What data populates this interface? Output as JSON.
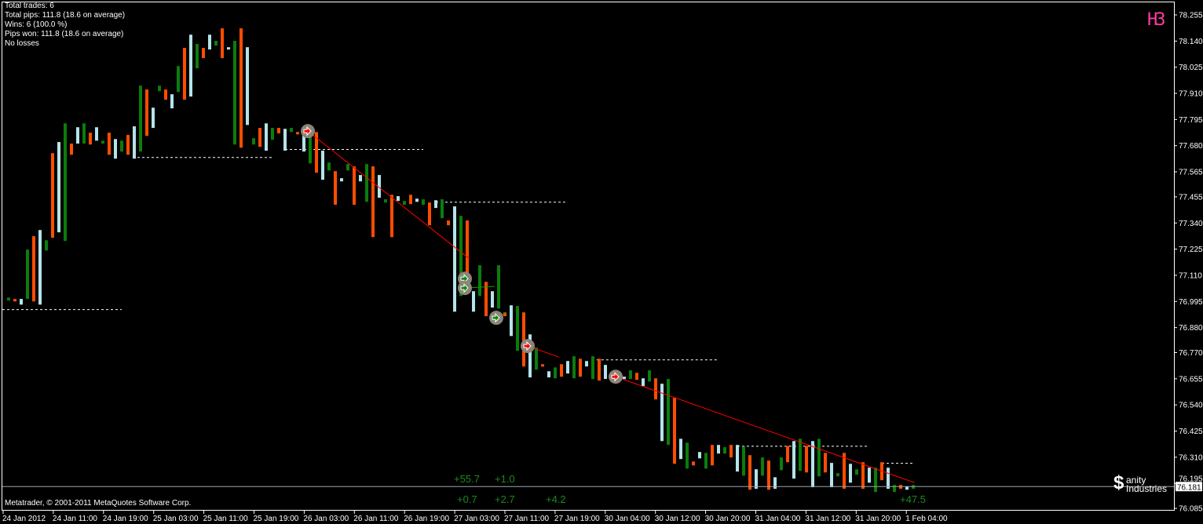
{
  "stats": {
    "lines": [
      "Total trades: 6",
      "Total pips: 111.8 (18.6 on average)",
      "Wins: 6 (100.0 %)",
      "Pips won: 111.8 (18.6 on average)",
      "No losses"
    ]
  },
  "timeframe_label": "H3",
  "copyright": "Metatrader, © 2001-2011 MetaQuotes Software Corp.",
  "logo": {
    "symbol": "$",
    "line1": "anity",
    "line2": "Industries"
  },
  "pips_labels": [
    "+55.7",
    "+1.0",
    "+0.7",
    "+2.7",
    "+4.2",
    "+47.5"
  ],
  "colors": {
    "g": "#0b7d0b",
    "o": "#ff4d00",
    "b": "#b4e4ea",
    "trade_line": "#ff0000",
    "close_line": "#0b9a0b",
    "grid": "#ffffff",
    "bid_line": "#9aa4ad"
  },
  "chart_data": {
    "type": "bar",
    "bid_price": "76.181",
    "y_ticks": [
      "78.255",
      "78.140",
      "78.025",
      "77.910",
      "77.795",
      "77.680",
      "77.565",
      "77.455",
      "77.340",
      "77.225",
      "77.110",
      "76.995",
      "76.880",
      "76.770",
      "76.655",
      "76.540",
      "76.425",
      "76.310",
      "76.195",
      "76.085"
    ],
    "ylim": [
      76.085,
      78.255
    ],
    "x_ticks": [
      "24 Jan 2012",
      "24 Jan 11:00",
      "24 Jan 19:00",
      "25 Jan 03:00",
      "25 Jan 11:00",
      "25 Jan 19:00",
      "26 Jan 03:00",
      "26 Jan 11:00",
      "26 Jan 19:00",
      "27 Jan 03:00",
      "27 Jan 11:00",
      "27 Jan 19:00",
      "30 Jan 04:00",
      "30 Jan 12:00",
      "30 Jan 20:00",
      "31 Jan 04:00",
      "31 Jan 12:00",
      "31 Jan 20:00",
      "1 Feb 04:00"
    ],
    "bars_high_low_color": [
      [
        77.012,
        76.999,
        "g"
      ],
      [
        77.006,
        76.995,
        "o"
      ],
      [
        77.006,
        76.981,
        "b"
      ],
      [
        77.223,
        77.006,
        "g"
      ],
      [
        77.282,
        76.995,
        "o"
      ],
      [
        77.309,
        76.981,
        "b"
      ],
      [
        77.264,
        77.219,
        "g"
      ],
      [
        77.647,
        77.275,
        "o"
      ],
      [
        77.696,
        77.299,
        "b"
      ],
      [
        77.778,
        77.261,
        "g"
      ],
      [
        77.689,
        77.64,
        "o"
      ],
      [
        77.761,
        77.689,
        "b"
      ],
      [
        77.778,
        77.689,
        "g"
      ],
      [
        77.737,
        77.685,
        "o"
      ],
      [
        77.761,
        77.702,
        "b"
      ],
      [
        77.702,
        77.689,
        "g"
      ],
      [
        77.737,
        77.64,
        "o"
      ],
      [
        77.709,
        77.623,
        "b"
      ],
      [
        77.702,
        77.654,
        "g"
      ],
      [
        77.727,
        77.64,
        "o"
      ],
      [
        77.765,
        77.623,
        "b"
      ],
      [
        77.944,
        77.654,
        "g"
      ],
      [
        77.927,
        77.723,
        "o"
      ],
      [
        77.847,
        77.758,
        "b"
      ],
      [
        77.944,
        77.92,
        "g"
      ],
      [
        77.927,
        77.882,
        "o"
      ],
      [
        77.906,
        77.844,
        "b"
      ],
      [
        78.03,
        77.916,
        "g"
      ],
      [
        78.11,
        77.882,
        "o"
      ],
      [
        78.168,
        77.896,
        "b"
      ],
      [
        78.127,
        78.02,
        "g"
      ],
      [
        78.11,
        78.065,
        "o"
      ],
      [
        78.168,
        78.103,
        "b"
      ],
      [
        78.141,
        78.12,
        "g"
      ],
      [
        78.196,
        78.065,
        "o"
      ],
      [
        78.113,
        78.103,
        "b"
      ],
      [
        78.141,
        77.685,
        "g"
      ],
      [
        78.196,
        77.671,
        "o"
      ],
      [
        78.113,
        77.771,
        "b"
      ],
      [
        77.713,
        77.685,
        "g"
      ],
      [
        77.758,
        77.675,
        "o"
      ],
      [
        77.778,
        77.658,
        "b"
      ],
      [
        77.758,
        77.706,
        "g"
      ],
      [
        77.758,
        77.734,
        "o"
      ],
      [
        77.754,
        77.658,
        "b"
      ],
      [
        77.758,
        77.74,
        "g"
      ],
      [
        77.74,
        77.734,
        "o"
      ],
      [
        77.754,
        77.654,
        "b"
      ],
      [
        77.734,
        77.602,
        "g"
      ],
      [
        77.74,
        77.561,
        "o"
      ],
      [
        77.658,
        77.53,
        "b"
      ],
      [
        77.606,
        77.571,
        "g"
      ],
      [
        77.568,
        77.42,
        "o"
      ],
      [
        77.537,
        77.523,
        "b"
      ],
      [
        77.599,
        77.571,
        "g"
      ],
      [
        77.589,
        77.42,
        "o"
      ],
      [
        77.551,
        77.523,
        "b"
      ],
      [
        77.599,
        77.433,
        "g"
      ],
      [
        77.589,
        77.278,
        "o"
      ],
      [
        77.551,
        77.451,
        "b"
      ],
      [
        77.444,
        77.43,
        "g"
      ],
      [
        77.464,
        77.278,
        "o"
      ],
      [
        77.458,
        77.437,
        "b"
      ],
      [
        77.437,
        77.42,
        "g"
      ],
      [
        77.464,
        77.423,
        "o"
      ],
      [
        77.447,
        77.433,
        "b"
      ],
      [
        77.444,
        77.42,
        "g"
      ],
      [
        77.43,
        77.33,
        "o"
      ],
      [
        77.44,
        77.406,
        "b"
      ],
      [
        77.444,
        77.361,
        "g"
      ],
      [
        77.351,
        77.33,
        "o"
      ],
      [
        77.413,
        76.95,
        "b"
      ],
      [
        77.371,
        77.019,
        "g"
      ],
      [
        77.351,
        77.078,
        "o"
      ],
      [
        77.04,
        76.95,
        "b"
      ],
      [
        77.154,
        77.019,
        "g"
      ],
      [
        77.081,
        76.93,
        "o"
      ],
      [
        77.04,
        76.968,
        "b"
      ],
      [
        77.154,
        76.964,
        "g"
      ],
      [
        76.947,
        76.93,
        "o"
      ],
      [
        76.978,
        76.843,
        "b"
      ],
      [
        76.975,
        76.778,
        "g"
      ],
      [
        76.947,
        76.709,
        "o"
      ],
      [
        76.85,
        76.661,
        "b"
      ],
      [
        76.792,
        76.695,
        "g"
      ],
      [
        76.719,
        76.709,
        "o"
      ],
      [
        76.688,
        76.661,
        "b"
      ],
      [
        76.705,
        76.657,
        "g"
      ],
      [
        76.719,
        76.664,
        "o"
      ],
      [
        76.733,
        76.678,
        "b"
      ],
      [
        76.754,
        76.657,
        "g"
      ],
      [
        76.743,
        76.664,
        "o"
      ],
      [
        76.733,
        76.709,
        "b"
      ],
      [
        76.754,
        76.654,
        "g"
      ],
      [
        76.743,
        76.647,
        "o"
      ],
      [
        76.716,
        76.654,
        "b"
      ],
      [
        76.667,
        76.654,
        "g"
      ],
      [
        76.681,
        76.647,
        "o"
      ],
      [
        76.664,
        76.654,
        "b"
      ],
      [
        76.692,
        76.654,
        "g"
      ],
      [
        76.681,
        76.65,
        "o"
      ],
      [
        76.657,
        76.623,
        "b"
      ],
      [
        76.692,
        76.643,
        "g"
      ],
      [
        76.657,
        76.564,
        "o"
      ],
      [
        76.633,
        76.381,
        "b"
      ],
      [
        76.654,
        76.364,
        "g"
      ],
      [
        76.571,
        76.281,
        "o"
      ],
      [
        76.391,
        76.302,
        "b"
      ],
      [
        76.374,
        76.26,
        "g"
      ],
      [
        76.291,
        76.274,
        "o"
      ],
      [
        76.333,
        76.305,
        "b"
      ],
      [
        76.329,
        76.26,
        "g"
      ],
      [
        76.364,
        76.274,
        "o"
      ],
      [
        76.364,
        76.326,
        "b"
      ],
      [
        76.354,
        76.326,
        "g"
      ],
      [
        76.364,
        76.309,
        "o"
      ],
      [
        76.364,
        76.247,
        "b"
      ],
      [
        76.357,
        76.229,
        "g"
      ],
      [
        76.319,
        76.167,
        "o"
      ],
      [
        76.257,
        76.171,
        "b"
      ],
      [
        76.309,
        76.229,
        "g"
      ],
      [
        76.295,
        76.167,
        "o"
      ],
      [
        76.222,
        76.171,
        "b"
      ],
      [
        76.309,
        76.253,
        "g"
      ],
      [
        76.36,
        76.288,
        "o"
      ],
      [
        76.381,
        76.216,
        "b"
      ],
      [
        76.391,
        76.25,
        "g"
      ],
      [
        76.36,
        76.243,
        "o"
      ],
      [
        76.381,
        76.178,
        "b"
      ],
      [
        76.391,
        76.226,
        "g"
      ],
      [
        76.329,
        76.243,
        "o"
      ],
      [
        76.285,
        76.178,
        "b"
      ],
      [
        76.24,
        76.226,
        "g"
      ],
      [
        76.329,
        76.171,
        "o"
      ],
      [
        76.281,
        76.198,
        "b"
      ],
      [
        76.257,
        76.233,
        "g"
      ],
      [
        76.288,
        76.171,
        "o"
      ],
      [
        76.264,
        76.198,
        "b"
      ],
      [
        76.264,
        76.157,
        "g"
      ],
      [
        76.288,
        76.209,
        "o"
      ],
      [
        76.264,
        76.171,
        "b"
      ],
      [
        76.188,
        76.157,
        "g"
      ],
      [
        76.188,
        76.171,
        "o"
      ],
      [
        76.181,
        76.167,
        "b"
      ],
      [
        76.188,
        76.171,
        "g"
      ]
    ],
    "levels": [
      {
        "price": 76.961,
        "from_bar": -1,
        "to_bar": 18
      },
      {
        "price": 77.63,
        "from_bar": 20.5,
        "to_bar": 42
      },
      {
        "price": 77.665,
        "from_bar": 44,
        "to_bar": 66
      },
      {
        "price": 77.433,
        "from_bar": 68,
        "to_bar": 88.6
      },
      {
        "price": 76.74,
        "from_bar": 93.6,
        "to_bar": 113
      },
      {
        "price": 76.36,
        "from_bar": 116,
        "to_bar": 137
      },
      {
        "price": 76.285,
        "from_bar": 139,
        "to_bar": 144
      }
    ],
    "trade_markers": [
      {
        "bar": 47,
        "price": 77.744,
        "type": "sell"
      },
      {
        "bar": 72,
        "price": 77.095,
        "type": "close"
      },
      {
        "bar": 72,
        "price": 77.054,
        "type": "close"
      },
      {
        "bar": 77,
        "price": 76.923,
        "type": "close"
      },
      {
        "bar": 82,
        "price": 76.799,
        "type": "sell"
      },
      {
        "bar": 96,
        "price": 76.664,
        "type": "sell"
      }
    ],
    "trade_lines": [
      {
        "from": [
          47,
          77.744
        ],
        "to": [
          72.75,
          77.182
        ],
        "kind": "trade_line"
      },
      {
        "from": [
          82,
          76.799
        ],
        "to": [
          87,
          76.75
        ],
        "kind": "trade_line"
      },
      {
        "from": [
          96,
          76.664
        ],
        "to": [
          143.6,
          76.198
        ],
        "kind": "trade_line"
      },
      {
        "from": [
          72,
          77.054
        ],
        "to": [
          76.75,
          77.061
        ],
        "kind": "close_line"
      },
      {
        "from": [
          77,
          76.923
        ],
        "to": [
          78.6,
          76.947
        ],
        "kind": "close_line"
      }
    ]
  }
}
